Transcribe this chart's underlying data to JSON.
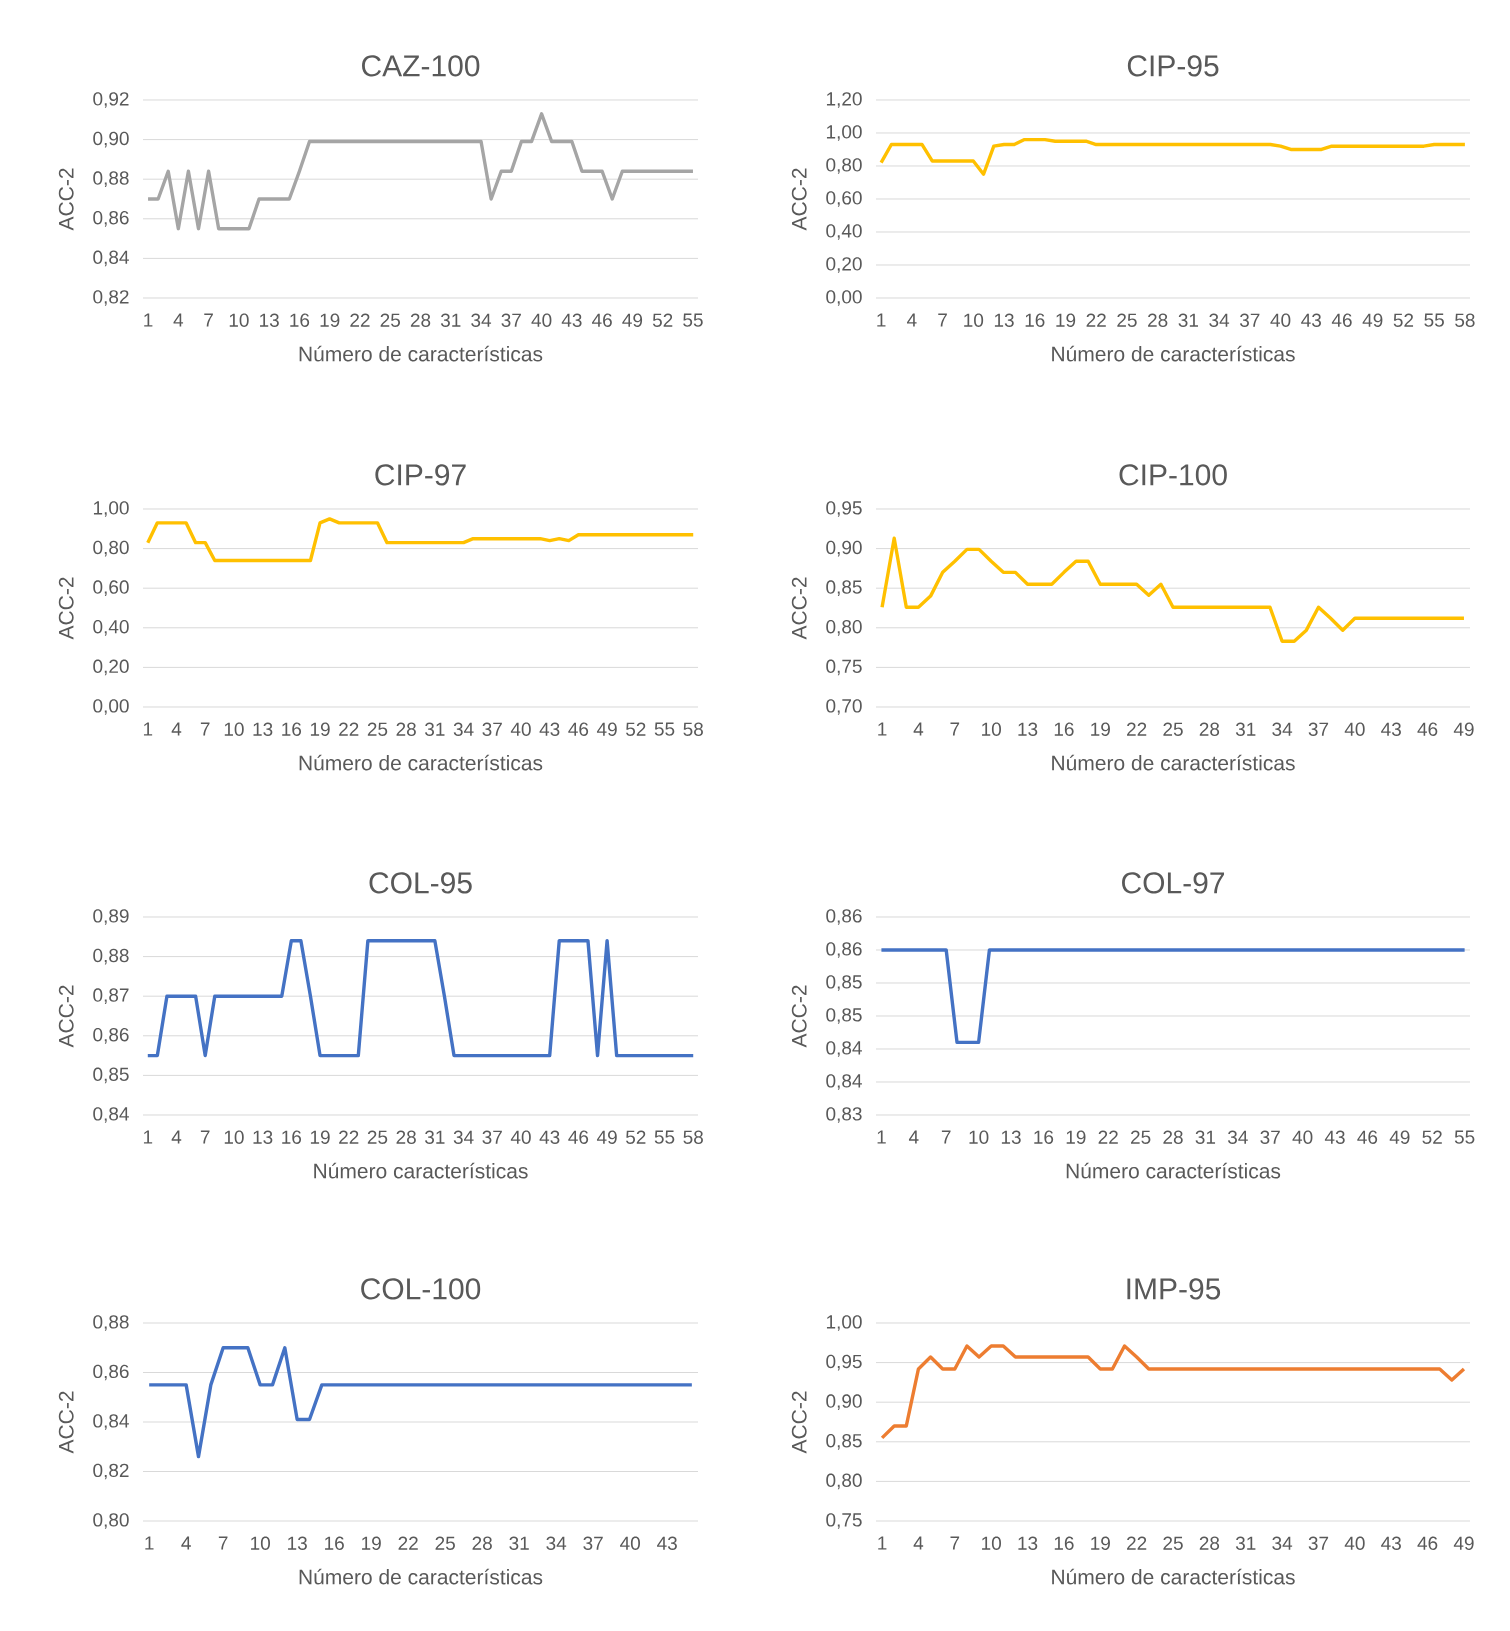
{
  "chart_data": [
    {
      "type": "line",
      "title": "CAZ-100",
      "xlabel": "Número de características",
      "ylabel": "ACC-2",
      "color": "#a5a5a5",
      "grid": "y",
      "categories": [
        "1",
        null,
        null,
        "4",
        null,
        null,
        "7",
        null,
        null,
        "10",
        null,
        null,
        "13",
        null,
        null,
        "16",
        null,
        null,
        "19",
        null,
        null,
        "22",
        null,
        null,
        "25",
        null,
        null,
        "28",
        null,
        null,
        "31",
        null,
        null,
        "34",
        null,
        null,
        "37",
        null,
        null,
        "40",
        null,
        null,
        "43",
        null,
        null,
        "46",
        null,
        null,
        "49",
        null,
        null,
        "52",
        null,
        null,
        "55"
      ],
      "values": [
        0.87,
        0.87,
        0.884,
        0.855,
        0.884,
        0.855,
        0.884,
        0.855,
        0.855,
        0.855,
        0.855,
        0.87,
        0.87,
        0.87,
        0.87,
        0.884,
        0.899,
        0.899,
        0.899,
        0.899,
        0.899,
        0.899,
        0.899,
        0.899,
        0.899,
        0.899,
        0.899,
        0.899,
        0.899,
        0.899,
        0.899,
        0.899,
        0.899,
        0.899,
        0.87,
        0.884,
        0.884,
        0.899,
        0.899,
        0.913,
        0.899,
        0.899,
        0.899,
        0.884,
        0.884,
        0.884,
        0.87,
        0.884,
        0.884,
        0.884,
        0.884,
        0.884,
        0.884,
        0.884,
        0.884
      ],
      "ylim": [
        0.82,
        0.92
      ],
      "yticks": [
        {
          "value": 0.82,
          "label": "0,82"
        },
        {
          "value": 0.84,
          "label": "0,84"
        },
        {
          "value": 0.86,
          "label": "0,86"
        },
        {
          "value": 0.88,
          "label": "0,88"
        },
        {
          "value": 0.9,
          "label": "0,90"
        },
        {
          "value": 0.92,
          "label": "0,92"
        }
      ]
    },
    {
      "type": "line",
      "title": "CIP-95",
      "xlabel": "Número de características",
      "ylabel": "ACC-2",
      "color": "#ffc000",
      "grid": "y",
      "categories": [
        "1",
        null,
        null,
        "4",
        null,
        null,
        "7",
        null,
        null,
        "10",
        null,
        null,
        "13",
        null,
        null,
        "16",
        null,
        null,
        "19",
        null,
        null,
        "22",
        null,
        null,
        "25",
        null,
        null,
        "28",
        null,
        null,
        "31",
        null,
        null,
        "34",
        null,
        null,
        "37",
        null,
        null,
        "40",
        null,
        null,
        "43",
        null,
        null,
        "46",
        null,
        null,
        "49",
        null,
        null,
        "52",
        null,
        null,
        "55",
        null,
        null,
        "58"
      ],
      "values": [
        0.82,
        0.93,
        0.93,
        0.93,
        0.93,
        0.83,
        0.83,
        0.83,
        0.83,
        0.83,
        0.75,
        0.92,
        0.93,
        0.93,
        0.96,
        0.96,
        0.96,
        0.95,
        0.95,
        0.95,
        0.95,
        0.93,
        0.93,
        0.93,
        0.93,
        0.93,
        0.93,
        0.93,
        0.93,
        0.93,
        0.93,
        0.93,
        0.93,
        0.93,
        0.93,
        0.93,
        0.93,
        0.93,
        0.93,
        0.92,
        0.9,
        0.9,
        0.9,
        0.9,
        0.92,
        0.92,
        0.92,
        0.92,
        0.92,
        0.92,
        0.92,
        0.92,
        0.92,
        0.92,
        0.93,
        0.93,
        0.93,
        0.93
      ],
      "ylim": [
        0,
        1.2
      ],
      "yticks": [
        {
          "value": 0,
          "label": "0,00"
        },
        {
          "value": 0.2,
          "label": "0,20"
        },
        {
          "value": 0.4,
          "label": "0,40"
        },
        {
          "value": 0.6,
          "label": "0,60"
        },
        {
          "value": 0.8,
          "label": "0,80"
        },
        {
          "value": 1.0,
          "label": "1,00"
        },
        {
          "value": 1.2,
          "label": "1,20"
        }
      ]
    },
    {
      "type": "line",
      "title": "CIP-97",
      "xlabel": "Número de características",
      "ylabel": "ACC-2",
      "color": "#ffc000",
      "grid": "y",
      "categories": [
        "1",
        null,
        null,
        "4",
        null,
        null,
        "7",
        null,
        null,
        "10",
        null,
        null,
        "13",
        null,
        null,
        "16",
        null,
        null,
        "19",
        null,
        null,
        "22",
        null,
        null,
        "25",
        null,
        null,
        "28",
        null,
        null,
        "31",
        null,
        null,
        "34",
        null,
        null,
        "37",
        null,
        null,
        "40",
        null,
        null,
        "43",
        null,
        null,
        "46",
        null,
        null,
        "49",
        null,
        null,
        "52",
        null,
        null,
        "55",
        null,
        null,
        "58"
      ],
      "values": [
        0.83,
        0.93,
        0.93,
        0.93,
        0.93,
        0.83,
        0.83,
        0.74,
        0.74,
        0.74,
        0.74,
        0.74,
        0.74,
        0.74,
        0.74,
        0.74,
        0.74,
        0.74,
        0.93,
        0.95,
        0.93,
        0.93,
        0.93,
        0.93,
        0.93,
        0.83,
        0.83,
        0.83,
        0.83,
        0.83,
        0.83,
        0.83,
        0.83,
        0.83,
        0.85,
        0.85,
        0.85,
        0.85,
        0.85,
        0.85,
        0.85,
        0.85,
        0.84,
        0.85,
        0.84,
        0.87,
        0.87,
        0.87,
        0.87,
        0.87,
        0.87,
        0.87,
        0.87,
        0.87,
        0.87,
        0.87,
        0.87,
        0.87
      ],
      "ylim": [
        0,
        1.0
      ],
      "yticks": [
        {
          "value": 0,
          "label": "0,00"
        },
        {
          "value": 0.2,
          "label": "0,20"
        },
        {
          "value": 0.4,
          "label": "0,40"
        },
        {
          "value": 0.6,
          "label": "0,60"
        },
        {
          "value": 0.8,
          "label": "0,80"
        },
        {
          "value": 1.0,
          "label": "1,00"
        }
      ]
    },
    {
      "type": "line",
      "title": "CIP-100",
      "xlabel": "Número de características",
      "ylabel": "ACC-2",
      "color": "#ffc000",
      "grid": "y",
      "categories": [
        "1",
        null,
        null,
        "4",
        null,
        null,
        "7",
        null,
        null,
        "10",
        null,
        null,
        "13",
        null,
        null,
        "16",
        null,
        null,
        "19",
        null,
        null,
        "22",
        null,
        null,
        "25",
        null,
        null,
        "28",
        null,
        null,
        "31",
        null,
        null,
        "34",
        null,
        null,
        "37",
        null,
        null,
        "40",
        null,
        null,
        "43",
        null,
        null,
        "46",
        null,
        null,
        "49"
      ],
      "values": [
        0.826,
        0.913,
        0.826,
        0.826,
        0.84,
        0.87,
        0.884,
        0.899,
        0.899,
        0.884,
        0.87,
        0.87,
        0.855,
        0.855,
        0.855,
        0.87,
        0.884,
        0.884,
        0.855,
        0.855,
        0.855,
        0.855,
        0.841,
        0.855,
        0.826,
        0.826,
        0.826,
        0.826,
        0.826,
        0.826,
        0.826,
        0.826,
        0.826,
        0.783,
        0.783,
        0.797,
        0.826,
        0.812,
        0.797,
        0.812,
        0.812,
        0.812,
        0.812,
        0.812,
        0.812,
        0.812,
        0.812,
        0.812,
        0.812
      ],
      "ylim": [
        0.7,
        0.95
      ],
      "yticks": [
        {
          "value": 0.7,
          "label": "0,70"
        },
        {
          "value": 0.75,
          "label": "0,75"
        },
        {
          "value": 0.8,
          "label": "0,80"
        },
        {
          "value": 0.85,
          "label": "0,85"
        },
        {
          "value": 0.9,
          "label": "0,90"
        },
        {
          "value": 0.95,
          "label": "0,95"
        }
      ]
    },
    {
      "type": "line",
      "title": "COL-95",
      "xlabel": "Número características",
      "ylabel": "ACC-2",
      "color": "#4472c4",
      "grid": "y",
      "categories": [
        "1",
        null,
        null,
        "4",
        null,
        null,
        "7",
        null,
        null,
        "10",
        null,
        null,
        "13",
        null,
        null,
        "16",
        null,
        null,
        "19",
        null,
        null,
        "22",
        null,
        null,
        "25",
        null,
        null,
        "28",
        null,
        null,
        "31",
        null,
        null,
        "34",
        null,
        null,
        "37",
        null,
        null,
        "40",
        null,
        null,
        "43",
        null,
        null,
        "46",
        null,
        null,
        "49",
        null,
        null,
        "52",
        null,
        null,
        "55",
        null,
        null,
        "58"
      ],
      "values": [
        0.855,
        0.855,
        0.87,
        0.87,
        0.87,
        0.87,
        0.855,
        0.87,
        0.87,
        0.87,
        0.87,
        0.87,
        0.87,
        0.87,
        0.87,
        0.884,
        0.884,
        0.87,
        0.855,
        0.855,
        0.855,
        0.855,
        0.855,
        0.884,
        0.884,
        0.884,
        0.884,
        0.884,
        0.884,
        0.884,
        0.884,
        0.87,
        0.855,
        0.855,
        0.855,
        0.855,
        0.855,
        0.855,
        0.855,
        0.855,
        0.855,
        0.855,
        0.855,
        0.884,
        0.884,
        0.884,
        0.884,
        0.855,
        0.884,
        0.855,
        0.855,
        0.855,
        0.855,
        0.855,
        0.855,
        0.855,
        0.855,
        0.855
      ],
      "ylim": [
        0.84,
        0.89
      ],
      "yticks": [
        {
          "value": 0.84,
          "label": "0,84"
        },
        {
          "value": 0.85,
          "label": "0,85"
        },
        {
          "value": 0.86,
          "label": "0,86"
        },
        {
          "value": 0.87,
          "label": "0,87"
        },
        {
          "value": 0.88,
          "label": "0,88"
        },
        {
          "value": 0.89,
          "label": "0,89"
        }
      ]
    },
    {
      "type": "line",
      "title": "COL-97",
      "xlabel": "Número características",
      "ylabel": "ACC-2",
      "color": "#4472c4",
      "grid": "y",
      "categories": [
        "1",
        null,
        null,
        "4",
        null,
        null,
        "7",
        null,
        null,
        "10",
        null,
        null,
        "13",
        null,
        null,
        "16",
        null,
        null,
        "19",
        null,
        null,
        "22",
        null,
        null,
        "25",
        null,
        null,
        "28",
        null,
        null,
        "31",
        null,
        null,
        "34",
        null,
        null,
        "37",
        null,
        null,
        "40",
        null,
        null,
        "43",
        null,
        null,
        "46",
        null,
        null,
        "49",
        null,
        null,
        "52",
        null,
        null,
        "55"
      ],
      "values": [
        0.855,
        0.855,
        0.855,
        0.855,
        0.855,
        0.855,
        0.855,
        0.841,
        0.841,
        0.841,
        0.855,
        0.855,
        0.855,
        0.855,
        0.855,
        0.855,
        0.855,
        0.855,
        0.855,
        0.855,
        0.855,
        0.855,
        0.855,
        0.855,
        0.855,
        0.855,
        0.855,
        0.855,
        0.855,
        0.855,
        0.855,
        0.855,
        0.855,
        0.855,
        0.855,
        0.855,
        0.855,
        0.855,
        0.855,
        0.855,
        0.855,
        0.855,
        0.855,
        0.855,
        0.855,
        0.855,
        0.855,
        0.855,
        0.855,
        0.855,
        0.855,
        0.855,
        0.855,
        0.855,
        0.855
      ],
      "ylim": [
        0.83,
        0.86
      ],
      "yticks": [
        {
          "value": 0.83,
          "label": "0,83"
        },
        {
          "value": 0.835,
          "label": "0,84"
        },
        {
          "value": 0.84,
          "label": "0,84"
        },
        {
          "value": 0.845,
          "label": "0,85"
        },
        {
          "value": 0.85,
          "label": "0,85"
        },
        {
          "value": 0.855,
          "label": "0,86"
        },
        {
          "value": 0.86,
          "label": "0,86"
        }
      ]
    },
    {
      "type": "line",
      "title": "COL-100",
      "xlabel": "Número de características",
      "ylabel": "ACC-2",
      "color": "#4472c4",
      "grid": "y",
      "categories": [
        "1",
        null,
        null,
        "4",
        null,
        null,
        "7",
        null,
        null,
        "10",
        null,
        null,
        "13",
        null,
        null,
        "16",
        null,
        null,
        "19",
        null,
        null,
        "22",
        null,
        null,
        "25",
        null,
        null,
        "28",
        null,
        null,
        "31",
        null,
        null,
        "34",
        null,
        null,
        "37",
        null,
        null,
        "40",
        null,
        null,
        "43",
        null,
        null
      ],
      "values": [
        0.855,
        0.855,
        0.855,
        0.855,
        0.826,
        0.855,
        0.87,
        0.87,
        0.87,
        0.855,
        0.855,
        0.87,
        0.841,
        0.841,
        0.855,
        0.855,
        0.855,
        0.855,
        0.855,
        0.855,
        0.855,
        0.855,
        0.855,
        0.855,
        0.855,
        0.855,
        0.855,
        0.855,
        0.855,
        0.855,
        0.855,
        0.855,
        0.855,
        0.855,
        0.855,
        0.855,
        0.855,
        0.855,
        0.855,
        0.855,
        0.855,
        0.855,
        0.855,
        0.855,
        0.855
      ],
      "ylim": [
        0.8,
        0.88
      ],
      "yticks": [
        {
          "value": 0.8,
          "label": "0,80"
        },
        {
          "value": 0.82,
          "label": "0,82"
        },
        {
          "value": 0.84,
          "label": "0,84"
        },
        {
          "value": 0.86,
          "label": "0,86"
        },
        {
          "value": 0.88,
          "label": "0,88"
        }
      ]
    },
    {
      "type": "line",
      "title": "IMP-95",
      "xlabel": "Número de características",
      "ylabel": "ACC-2",
      "color": "#ed7d31",
      "grid": "y",
      "categories": [
        "1",
        null,
        null,
        "4",
        null,
        null,
        "7",
        null,
        null,
        "10",
        null,
        null,
        "13",
        null,
        null,
        "16",
        null,
        null,
        "19",
        null,
        null,
        "22",
        null,
        null,
        "25",
        null,
        null,
        "28",
        null,
        null,
        "31",
        null,
        null,
        "34",
        null,
        null,
        "37",
        null,
        null,
        "40",
        null,
        null,
        "43",
        null,
        null,
        "46",
        null,
        null,
        "49"
      ],
      "values": [
        0.855,
        0.87,
        0.87,
        0.942,
        0.957,
        0.942,
        0.942,
        0.971,
        0.957,
        0.971,
        0.971,
        0.957,
        0.957,
        0.957,
        0.957,
        0.957,
        0.957,
        0.957,
        0.942,
        0.942,
        0.971,
        0.957,
        0.942,
        0.942,
        0.942,
        0.942,
        0.942,
        0.942,
        0.942,
        0.942,
        0.942,
        0.942,
        0.942,
        0.942,
        0.942,
        0.942,
        0.942,
        0.942,
        0.942,
        0.942,
        0.942,
        0.942,
        0.942,
        0.942,
        0.942,
        0.942,
        0.942,
        0.928,
        0.942
      ],
      "ylim": [
        0.75,
        1.0
      ],
      "yticks": [
        {
          "value": 0.75,
          "label": "0,75"
        },
        {
          "value": 0.8,
          "label": "0,80"
        },
        {
          "value": 0.85,
          "label": "0,85"
        },
        {
          "value": 0.9,
          "label": "0,90"
        },
        {
          "value": 0.95,
          "label": "0,95"
        },
        {
          "value": 1.0,
          "label": "1,00"
        }
      ]
    }
  ]
}
